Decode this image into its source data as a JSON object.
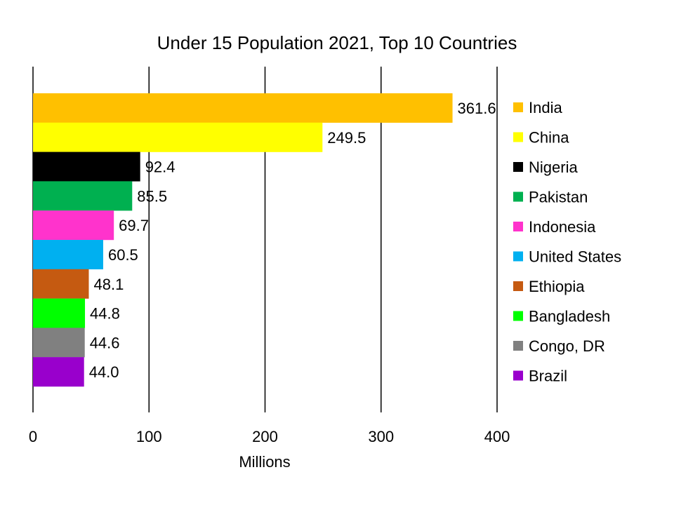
{
  "chart_data": {
    "type": "bar",
    "orientation": "horizontal",
    "title": "Under 15 Population 2021, Top 10 Countries",
    "xlabel": "Millions",
    "ylabel": "",
    "xlim": [
      0,
      400
    ],
    "xticks": [
      0,
      100,
      200,
      300,
      400
    ],
    "grid": "vertical",
    "legend_position": "right",
    "categories": [
      "India",
      "China",
      "Nigeria",
      "Pakistan",
      "Indonesia",
      "United States",
      "Ethiopia",
      "Bangladesh",
      "Congo, DR",
      "Brazil"
    ],
    "values": [
      361.6,
      249.5,
      92.4,
      85.5,
      69.7,
      60.5,
      48.1,
      44.8,
      44.6,
      44.0
    ],
    "value_labels": [
      "361.6",
      "249.5",
      "92.4",
      "85.5",
      "69.7",
      "60.5",
      "48.1",
      "44.8",
      "44.6",
      "44.0"
    ],
    "colors": [
      "#FFC000",
      "#FFFF00",
      "#000000",
      "#00B050",
      "#FF33CC",
      "#00B0F0",
      "#C55A11",
      "#00FF00",
      "#808080",
      "#9900CC"
    ]
  }
}
